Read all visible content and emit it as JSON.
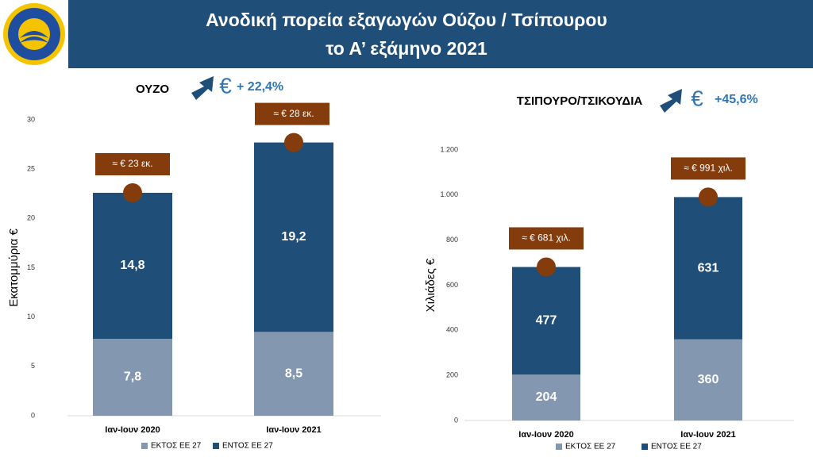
{
  "header": {
    "title": [
      "Ανοδική πορεία εξαγωγών Ούζου / Τσίπουρου",
      "το Α’ εξάμηνο 2021"
    ]
  },
  "chart_data": [
    {
      "type": "bar",
      "stacked": true,
      "title": "ΟΥΖΟ",
      "growth_symbol": "€",
      "growth_label": "+ 22,4%",
      "y_label": "Εκατομμύρια €",
      "categories": [
        "Ιαν-Ιουν 2020",
        "Ιαν-Ιουν 2021"
      ],
      "series": [
        {
          "name": "ΕΚΤΟΣ ΕΕ 27",
          "color": "#8497b0",
          "values": [
            7.8,
            8.5
          ],
          "value_labels": [
            "7,8",
            "8,5"
          ]
        },
        {
          "name": "ΕΝΤΟΣ ΕΕ 27",
          "color": "#1f4e79",
          "values": [
            14.8,
            19.2
          ],
          "value_labels": [
            "14,8",
            "19,2"
          ]
        }
      ],
      "total_labels": [
        "≈ € 23 εκ.",
        "≈ € 28 εκ."
      ],
      "ylim": [
        0,
        30
      ],
      "yticks": [
        0,
        5,
        10,
        15,
        20,
        25,
        30
      ]
    },
    {
      "type": "bar",
      "stacked": true,
      "title": "ΤΣΙΠΟΥΡΟ/ΤΣΙΚΟΥΔΙΑ",
      "growth_symbol": "€",
      "growth_label": "+45,6%",
      "y_label": "Χιλιάδες €",
      "categories": [
        "Ιαν-Ιουν 2020",
        "Ιαν-Ιουν 2021"
      ],
      "series": [
        {
          "name": "ΕΚΤΟΣ ΕΕ 27",
          "color": "#8497b0",
          "values": [
            204,
            360
          ]
        },
        {
          "name": "ΕΝΤΟΣ ΕΕ 27",
          "color": "#1f4e79",
          "values": [
            477,
            631
          ]
        }
      ],
      "total_labels": [
        "≈ € 681 χιλ.",
        "≈ € 991 χιλ."
      ],
      "ylim": [
        0,
        1200
      ],
      "yticks": [
        0,
        200,
        400,
        600,
        800,
        {
          "value": 1000,
          "label": "1.000"
        },
        {
          "value": 1200,
          "label": "1.200"
        }
      ]
    }
  ]
}
